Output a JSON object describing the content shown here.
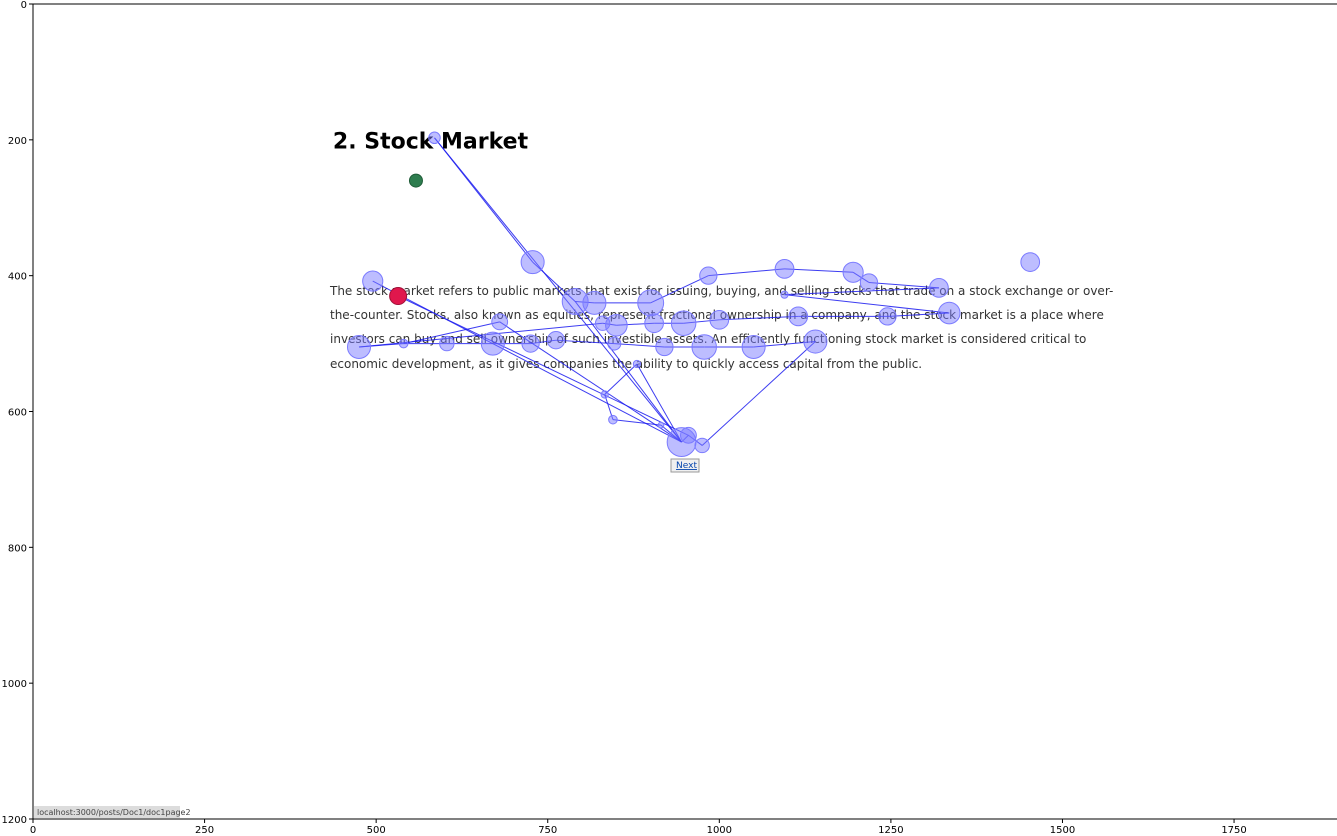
{
  "chart_data": {
    "type": "scatter",
    "title": "",
    "xlabel": "",
    "ylabel": "",
    "xlim": [
      0,
      1900
    ],
    "ylim": [
      1200,
      0
    ],
    "xticks": [
      0,
      250,
      500,
      750,
      1000,
      1250,
      1500,
      1750
    ],
    "yticks": [
      0,
      200,
      400,
      600,
      800,
      1000,
      1200
    ],
    "grid": false,
    "legend": "none",
    "colors": {
      "fixation": "#7b7bff",
      "path": "#1a1aee",
      "start": "#2e7d4f",
      "end": "#e0174d",
      "text": "#333333",
      "link": "#0645ad"
    },
    "page_text": {
      "title": "2. Stock Market",
      "lines": [
        "The stock market refers to public markets that exist for issuing, buying, and selling stocks that trade on a stock exchange or over-",
        "the-counter. Stocks, also known as equities, represent fractional ownership in a company, and the stock market is a place where",
        "investors can buy and sell ownership of such investible assets. An efficiently functioning stock market is considered critical to",
        "economic development, as it gives companies the ability to quickly access capital from the public."
      ],
      "next_label": "Next",
      "status_url": "localhost:3000/posts/Doc1/doc1page2"
    },
    "fixations": [
      {
        "x": 585,
        "y": 197,
        "r": 8
      },
      {
        "x": 728,
        "y": 380,
        "r": 16
      },
      {
        "x": 790,
        "y": 438,
        "r": 18
      },
      {
        "x": 818,
        "y": 440,
        "r": 16
      },
      {
        "x": 900,
        "y": 440,
        "r": 18
      },
      {
        "x": 984,
        "y": 400,
        "r": 12
      },
      {
        "x": 1095,
        "y": 390,
        "r": 13
      },
      {
        "x": 1195,
        "y": 395,
        "r": 14
      },
      {
        "x": 1218,
        "y": 410,
        "r": 12
      },
      {
        "x": 1320,
        "y": 418,
        "r": 13
      },
      {
        "x": 1453,
        "y": 380,
        "r": 13
      },
      {
        "x": 1335,
        "y": 455,
        "r": 15
      },
      {
        "x": 1245,
        "y": 460,
        "r": 12
      },
      {
        "x": 1115,
        "y": 460,
        "r": 13
      },
      {
        "x": 1000,
        "y": 465,
        "r": 13
      },
      {
        "x": 948,
        "y": 470,
        "r": 17
      },
      {
        "x": 905,
        "y": 470,
        "r": 13
      },
      {
        "x": 850,
        "y": 473,
        "r": 15
      },
      {
        "x": 830,
        "y": 470,
        "r": 10
      },
      {
        "x": 680,
        "y": 468,
        "r": 11
      },
      {
        "x": 495,
        "y": 408,
        "r": 14
      },
      {
        "x": 475,
        "y": 505,
        "r": 16
      },
      {
        "x": 540,
        "y": 500,
        "r": 6
      },
      {
        "x": 603,
        "y": 500,
        "r": 10
      },
      {
        "x": 670,
        "y": 500,
        "r": 16
      },
      {
        "x": 725,
        "y": 500,
        "r": 12
      },
      {
        "x": 762,
        "y": 495,
        "r": 12
      },
      {
        "x": 847,
        "y": 500,
        "r": 9
      },
      {
        "x": 920,
        "y": 505,
        "r": 12
      },
      {
        "x": 978,
        "y": 505,
        "r": 17
      },
      {
        "x": 1050,
        "y": 505,
        "r": 16
      },
      {
        "x": 1140,
        "y": 497,
        "r": 16
      },
      {
        "x": 880,
        "y": 530,
        "r": 5
      },
      {
        "x": 833,
        "y": 575,
        "r": 5
      },
      {
        "x": 845,
        "y": 612,
        "r": 6
      },
      {
        "x": 915,
        "y": 620,
        "r": 4
      },
      {
        "x": 945,
        "y": 645,
        "r": 20
      },
      {
        "x": 955,
        "y": 635,
        "r": 11
      },
      {
        "x": 975,
        "y": 650,
        "r": 10
      },
      {
        "x": 1095,
        "y": 428,
        "r": 5
      }
    ],
    "start_point": {
      "x": 558,
      "y": 260
    },
    "end_point": {
      "x": 532,
      "y": 430
    },
    "scanpath": [
      [
        585,
        197
      ],
      [
        728,
        380
      ],
      [
        790,
        438
      ],
      [
        818,
        440
      ],
      [
        900,
        440
      ],
      [
        984,
        400
      ],
      [
        1095,
        390
      ],
      [
        1195,
        395
      ],
      [
        1218,
        410
      ],
      [
        1320,
        418
      ],
      [
        1095,
        428
      ],
      [
        1335,
        455
      ],
      [
        1245,
        460
      ],
      [
        1115,
        460
      ],
      [
        1000,
        465
      ],
      [
        948,
        470
      ],
      [
        905,
        470
      ],
      [
        850,
        473
      ],
      [
        830,
        470
      ],
      [
        475,
        505
      ],
      [
        540,
        500
      ],
      [
        603,
        500
      ],
      [
        670,
        500
      ],
      [
        725,
        500
      ],
      [
        762,
        495
      ],
      [
        847,
        500
      ],
      [
        920,
        505
      ],
      [
        978,
        505
      ],
      [
        1050,
        505
      ],
      [
        1140,
        497
      ],
      [
        975,
        650
      ],
      [
        955,
        635
      ],
      [
        945,
        645
      ],
      [
        880,
        530
      ],
      [
        833,
        575
      ],
      [
        845,
        612
      ],
      [
        915,
        620
      ],
      [
        945,
        645
      ],
      [
        585,
        197
      ]
    ],
    "extra_paths": [
      [
        [
          495,
          408
        ],
        [
          945,
          645
        ]
      ],
      [
        [
          532,
          430
        ],
        [
          955,
          635
        ]
      ],
      [
        [
          540,
          500
        ],
        [
          680,
          468
        ]
      ],
      [
        [
          680,
          468
        ],
        [
          945,
          645
        ]
      ],
      [
        [
          790,
          438
        ],
        [
          945,
          645
        ]
      ]
    ]
  }
}
